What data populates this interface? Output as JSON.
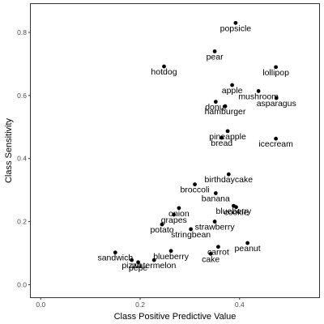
{
  "chart_data": {
    "type": "scatter",
    "title": "",
    "xlabel": "Class Positive Predictive Value",
    "ylabel": "Class Sensitivity",
    "xlim": [
      -0.02,
      0.56
    ],
    "ylim": [
      -0.04,
      0.89
    ],
    "x_ticks": [
      0.0,
      0.2,
      0.4
    ],
    "x_tick_labels": [
      "0.0",
      "0.2",
      "0.4"
    ],
    "y_ticks": [
      0.0,
      0.2,
      0.4,
      0.6,
      0.8
    ],
    "y_tick_labels": [
      "0.0",
      "0.2",
      "0.4",
      "0.6",
      "0.8"
    ],
    "grid": true,
    "points": [
      {
        "label": "popsicle",
        "x": 0.392,
        "y": 0.83
      },
      {
        "label": "pear",
        "x": 0.35,
        "y": 0.74
      },
      {
        "label": "hotdog",
        "x": 0.248,
        "y": 0.692
      },
      {
        "label": "lollipop",
        "x": 0.473,
        "y": 0.69
      },
      {
        "label": "apple",
        "x": 0.385,
        "y": 0.633
      },
      {
        "label": "mushroom",
        "x": 0.438,
        "y": 0.614
      },
      {
        "label": "asparagus",
        "x": 0.474,
        "y": 0.592
      },
      {
        "label": "donut",
        "x": 0.352,
        "y": 0.58
      },
      {
        "label": "hamburger",
        "x": 0.371,
        "y": 0.566
      },
      {
        "label": "pineapple",
        "x": 0.376,
        "y": 0.487
      },
      {
        "label": "bread",
        "x": 0.364,
        "y": 0.466
      },
      {
        "label": "icecream",
        "x": 0.473,
        "y": 0.463
      },
      {
        "label": "birthdaycake",
        "x": 0.378,
        "y": 0.35
      },
      {
        "label": "broccoli",
        "x": 0.31,
        "y": 0.318
      },
      {
        "label": "banana",
        "x": 0.352,
        "y": 0.29
      },
      {
        "label": "blueberry",
        "x": 0.388,
        "y": 0.25
      },
      {
        "label": "cookie",
        "x": 0.393,
        "y": 0.246
      },
      {
        "label": "onion",
        "x": 0.278,
        "y": 0.243
      },
      {
        "label": "grapes",
        "x": 0.268,
        "y": 0.222
      },
      {
        "label": "strawberry",
        "x": 0.35,
        "y": 0.2
      },
      {
        "label": "potato",
        "x": 0.244,
        "y": 0.191
      },
      {
        "label": "stringbean",
        "x": 0.302,
        "y": 0.176
      },
      {
        "label": "peanut",
        "x": 0.416,
        "y": 0.132
      },
      {
        "label": "carrot",
        "x": 0.357,
        "y": 0.12
      },
      {
        "label": "blueberry",
        "x": 0.262,
        "y": 0.107
      },
      {
        "label": "cake",
        "x": 0.342,
        "y": 0.098
      },
      {
        "label": "sandwich",
        "x": 0.15,
        "y": 0.102
      },
      {
        "label": "pizza",
        "x": 0.183,
        "y": 0.078
      },
      {
        "label": "watermelon",
        "x": 0.228,
        "y": 0.078
      },
      {
        "label": "pepe",
        "x": 0.196,
        "y": 0.071
      }
    ]
  }
}
